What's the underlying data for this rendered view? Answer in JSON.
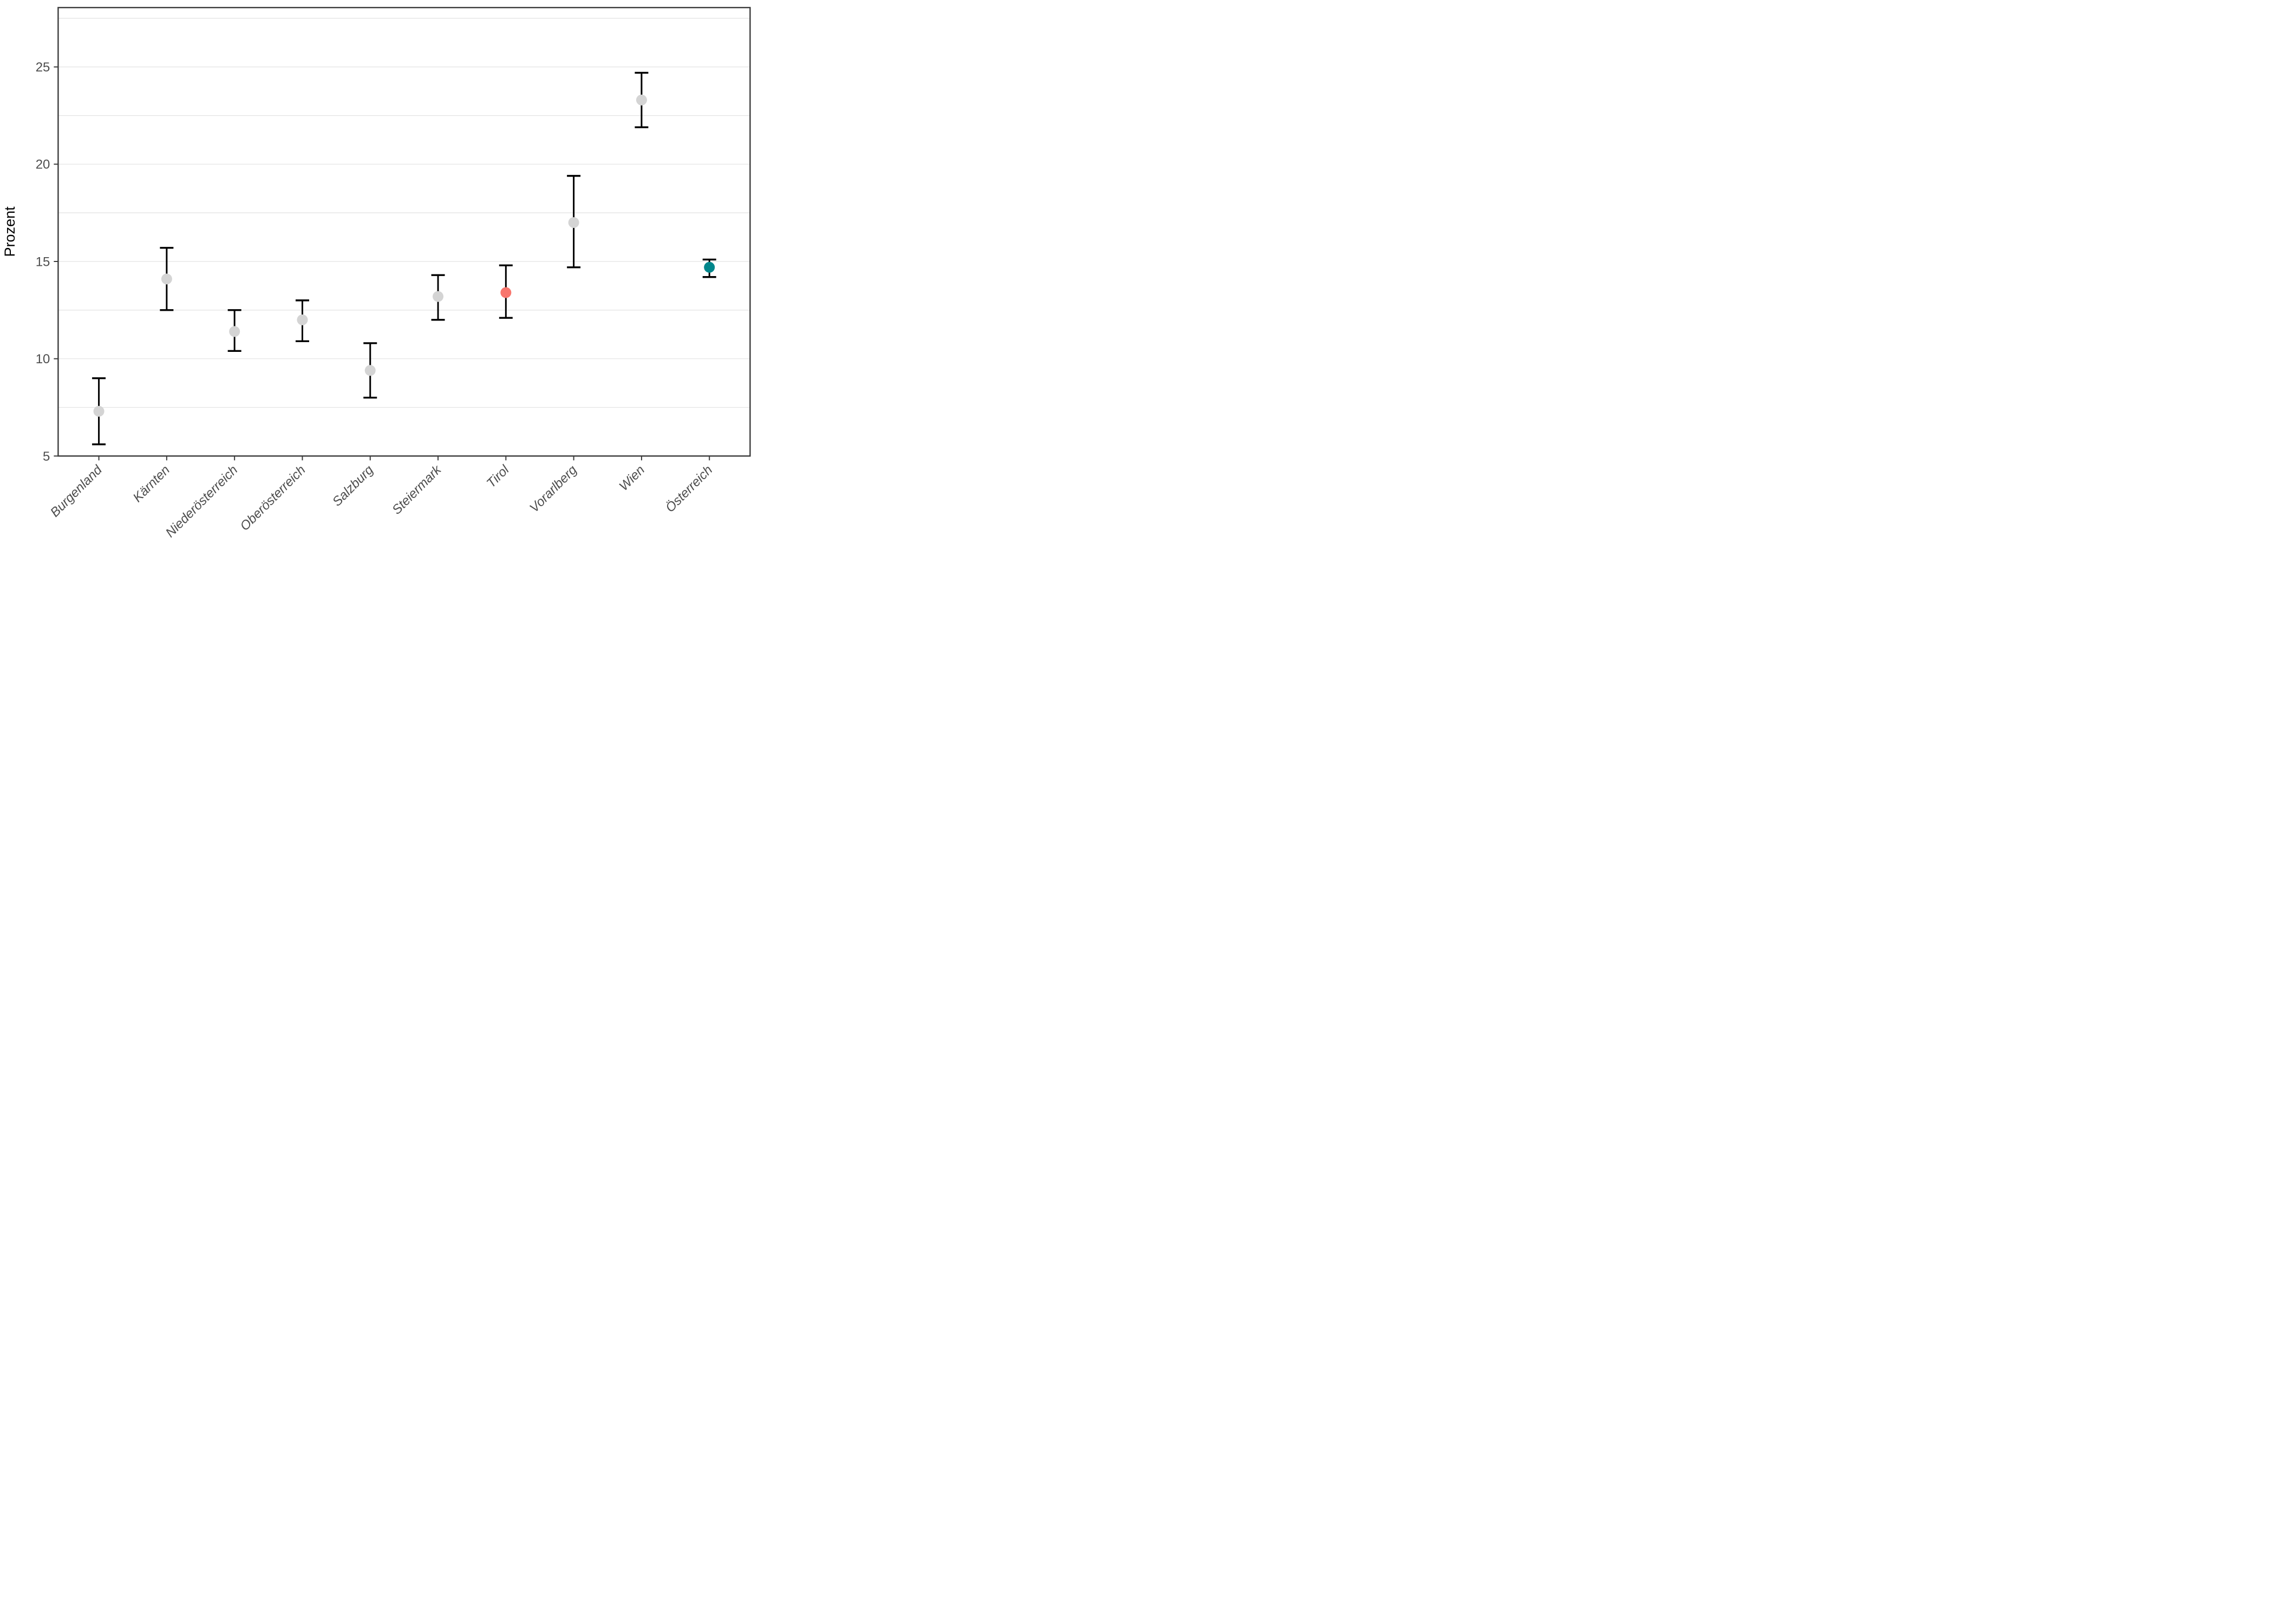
{
  "figure": {
    "background": "#FFFFFF",
    "title": ""
  },
  "chart_data": {
    "type": "pointrange",
    "title": "",
    "xlabel": "",
    "ylabel": "Prozent",
    "ylim": [
      5,
      28.05
    ],
    "yticks": [
      5,
      10,
      15,
      20,
      25
    ],
    "gridlines": [
      7.5,
      10,
      12.5,
      15,
      17.5,
      20,
      22.5,
      25,
      27.5
    ],
    "grid": "horizontal-only",
    "legend_position": "none",
    "x_tick_rotation": -45,
    "categories": [
      "Burgenland",
      "Kärnten",
      "Niederösterreich",
      "Oberösterreich",
      "Salzburg",
      "Steiermark",
      "Tirol",
      "Vorarlberg",
      "Wien",
      "Österreich"
    ],
    "points": [
      {
        "category": "Burgenland",
        "value": 7.3,
        "lower": 5.6,
        "upper": 9.0,
        "color_key": "gray"
      },
      {
        "category": "Kärnten",
        "value": 14.1,
        "lower": 12.5,
        "upper": 15.7,
        "color_key": "gray"
      },
      {
        "category": "Niederösterreich",
        "value": 11.4,
        "lower": 10.4,
        "upper": 12.5,
        "color_key": "gray"
      },
      {
        "category": "Oberösterreich",
        "value": 12.0,
        "lower": 10.9,
        "upper": 13.0,
        "color_key": "gray"
      },
      {
        "category": "Salzburg",
        "value": 9.4,
        "lower": 8.0,
        "upper": 10.8,
        "color_key": "gray"
      },
      {
        "category": "Steiermark",
        "value": 13.2,
        "lower": 12.0,
        "upper": 14.3,
        "color_key": "gray"
      },
      {
        "category": "Tirol",
        "value": 13.4,
        "lower": 12.1,
        "upper": 14.8,
        "color_key": "red"
      },
      {
        "category": "Vorarlberg",
        "value": 17.0,
        "lower": 14.7,
        "upper": 19.4,
        "color_key": "gray"
      },
      {
        "category": "Wien",
        "value": 23.3,
        "lower": 21.9,
        "upper": 24.7,
        "color_key": "gray"
      },
      {
        "category": "Österreich",
        "value": 14.7,
        "lower": 14.2,
        "upper": 15.1,
        "color_key": "teal"
      }
    ],
    "colors": {
      "gray": "#D4D4D4",
      "red": "#F8766D",
      "teal": "#00868B",
      "errorbar": "#000000",
      "panel_border": "#3A3A3A",
      "gridline": "#E2E2E2",
      "tick_label": "#4D4D4D",
      "axis_title": "#000000"
    }
  }
}
